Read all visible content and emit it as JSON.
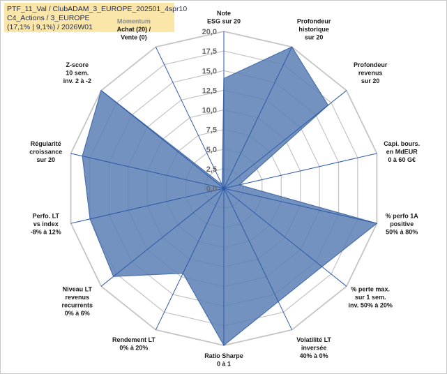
{
  "info": {
    "line1": "PTF_11_Val / ClubADAM_3_EUROPE_202501_4spr10",
    "line2": "C4_Actions / 3_EUROPE",
    "line3": "(17,1% | 9,1%) / 2026W01"
  },
  "colors": {
    "fill": "#5b7fb5",
    "stroke": "#4a6fa8",
    "grid": "#c4c4c4",
    "spoke": "#2e5aa8"
  },
  "chart_data": {
    "type": "radar",
    "rmin": 0,
    "rmax": 20,
    "ticks": [
      "0,0",
      "2,5",
      "5,0",
      "7,5",
      "10,0",
      "12,5",
      "15,0",
      "17,5",
      "20,0"
    ],
    "categories": [
      {
        "label": [
          "Note",
          "ESG sur 20"
        ],
        "value": 14.0
      },
      {
        "label": [
          "Profondeur",
          "historique",
          "sur 20"
        ],
        "value": 20.0
      },
      {
        "label": [
          "Profondeur",
          "revenus",
          "sur 20"
        ],
        "value": 17.0
      },
      {
        "label": [
          "Capi. bours.",
          "en MdEUR",
          "0 à 60 G€"
        ],
        "value": 2.0
      },
      {
        "label": [
          "% perfo 1A",
          "positive",
          "50% à 80%"
        ],
        "value": 20.0
      },
      {
        "label": [
          "% perte max.",
          "sur 1 sem.",
          "inv. 50% à 20%"
        ],
        "value": 16.0
      },
      {
        "label": [
          "Volatilité LT",
          "inversée",
          "40% à 0%"
        ],
        "value": 16.0
      },
      {
        "label": [
          "Ratio Sharpe",
          "0 à 1"
        ],
        "value": 20.0
      },
      {
        "label": [
          "Rendement LT",
          "0% à 20%"
        ],
        "value": 12.0
      },
      {
        "label": [
          "Niveau LT",
          "revenus",
          "recurrents",
          "0% à 6%"
        ],
        "value": 18.0
      },
      {
        "label": [
          "Perfo. LT",
          "vs index",
          "-8% à 12%"
        ],
        "value": 17.5
      },
      {
        "label": [
          "Régularité",
          "croissance",
          "sur 20"
        ],
        "value": 18.5
      },
      {
        "label": [
          "Z-score",
          "10 sem.",
          "inv. 2 à -2"
        ],
        "value": 20.0
      },
      {
        "label": [
          "Momentum",
          "Achat (20) /",
          "Vente (0)"
        ],
        "value": 0.5,
        "muted_lines": [
          0
        ]
      }
    ]
  }
}
